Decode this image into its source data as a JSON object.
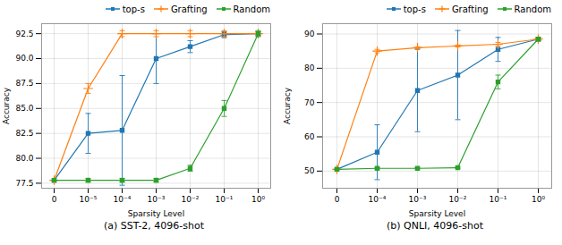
{
  "chart_data": [
    {
      "type": "line",
      "caption": "(a) SST-2, 4096-shot",
      "xlabel": "Sparsity Level",
      "ylabel": "Accuracy",
      "categories": [
        "0",
        "10⁻⁵",
        "10⁻⁴",
        "10⁻³",
        "10⁻²",
        "10⁻¹",
        "10⁰"
      ],
      "series": [
        {
          "name": "top-s",
          "color": "#1f77b4",
          "marker": "square",
          "values": [
            77.8,
            82.5,
            82.8,
            90.0,
            91.2,
            92.4,
            92.5
          ],
          "errors": [
            0.0,
            2.0,
            5.5,
            2.5,
            0.6,
            0.3,
            0.2
          ]
        },
        {
          "name": "Grafting",
          "color": "#ff7f0e",
          "marker": "plus",
          "values": [
            77.8,
            87.0,
            92.5,
            92.5,
            92.5,
            92.5,
            92.5
          ],
          "errors": [
            0.0,
            0.5,
            0.3,
            0.3,
            0.3,
            0.3,
            0.2
          ]
        },
        {
          "name": "Random",
          "color": "#2ca02c",
          "marker": "square",
          "values": [
            77.8,
            77.8,
            77.8,
            77.8,
            79.0,
            85.0,
            92.5
          ],
          "errors": [
            0.0,
            0.2,
            0.2,
            0.2,
            0.3,
            0.8,
            0.3
          ]
        }
      ],
      "ylim": [
        77.0,
        93.5
      ],
      "yticks": [
        77.5,
        {
          "value": 80,
          "label": "80.0"
        },
        82.5,
        {
          "value": 85,
          "label": "85.0"
        },
        87.5,
        {
          "value": 90,
          "label": "90.0"
        },
        92.5
      ],
      "grid": true
    },
    {
      "type": "line",
      "caption": "(b) QNLI, 4096-shot",
      "xlabel": "Sparsity Level",
      "ylabel": "Accuracy",
      "categories": [
        "0",
        "10⁻⁴",
        "10⁻³",
        "10⁻²",
        "10⁻¹",
        "10⁰"
      ],
      "series": [
        {
          "name": "top-s",
          "color": "#1f77b4",
          "marker": "square",
          "values": [
            50.5,
            55.5,
            73.5,
            78.0,
            85.5,
            88.5
          ],
          "errors": [
            0.0,
            8.0,
            12.0,
            13.0,
            3.5,
            0.3
          ]
        },
        {
          "name": "Grafting",
          "color": "#ff7f0e",
          "marker": "plus",
          "values": [
            50.5,
            85.0,
            86.0,
            86.5,
            87.0,
            88.5
          ],
          "errors": [
            0.0,
            0.5,
            0.3,
            0.3,
            0.5,
            0.3
          ]
        },
        {
          "name": "Random",
          "color": "#2ca02c",
          "marker": "square",
          "values": [
            50.5,
            50.8,
            50.8,
            51.0,
            76.0,
            88.5
          ],
          "errors": [
            0.0,
            0.2,
            0.2,
            0.2,
            2.0,
            0.5
          ]
        }
      ],
      "ylim": [
        45.0,
        93.0
      ],
      "yticks": [
        50,
        60,
        70,
        80,
        90
      ],
      "grid": true
    }
  ]
}
